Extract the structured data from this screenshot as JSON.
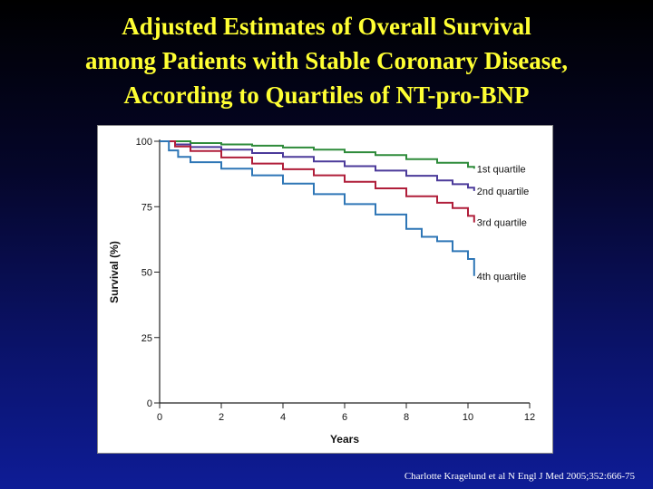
{
  "slide": {
    "title_lines": [
      "Adjusted Estimates of Overall Survival",
      "among Patients with Stable Coronary Disease,",
      "According to Quartiles of NT-pro-BNP"
    ],
    "citation": "Charlotte Kragelund et al N Engl J Med 2005;352:666-75"
  },
  "colors": {
    "title": "#ffff33",
    "q1": "#2e8b3a",
    "q2": "#4b3a9a",
    "q3": "#b01e3a",
    "q4": "#2e76b6"
  },
  "chart_data": {
    "type": "line",
    "xlabel": "Years",
    "ylabel": "Survival (%)",
    "xlim": [
      0,
      12
    ],
    "ylim": [
      0,
      100
    ],
    "xticks": [
      0,
      2,
      4,
      6,
      8,
      10,
      12
    ],
    "yticks": [
      0,
      25,
      50,
      75,
      100
    ],
    "grid": false,
    "legend": "labels at line ends",
    "series": [
      {
        "name": "1st quartile",
        "color": "#2e8b3a",
        "x": [
          0,
          1,
          2,
          3,
          4,
          5,
          6,
          7,
          8,
          9,
          10,
          10.2
        ],
        "y": [
          100,
          99.3,
          98.8,
          98.3,
          97.6,
          96.8,
          95.8,
          94.7,
          93.2,
          91.8,
          90.2,
          89.5
        ]
      },
      {
        "name": "2nd quartile",
        "color": "#4b3a9a",
        "x": [
          0,
          0.5,
          1,
          2,
          3,
          4,
          5,
          6,
          7,
          8,
          9,
          9.5,
          10,
          10.2
        ],
        "y": [
          100,
          98.8,
          97.8,
          96.8,
          95.5,
          94,
          92.3,
          90.5,
          88.8,
          86.8,
          85,
          83.6,
          82.3,
          81
        ]
      },
      {
        "name": "3rd quartile",
        "color": "#b01e3a",
        "x": [
          0,
          0.5,
          1,
          2,
          3,
          4,
          5,
          6,
          7,
          8,
          9,
          9.5,
          10,
          10.2
        ],
        "y": [
          100,
          98,
          96.3,
          93.8,
          91.5,
          89.3,
          87,
          84.5,
          82,
          79,
          76.5,
          74.5,
          71.5,
          69
        ]
      },
      {
        "name": "4th quartile",
        "color": "#2e76b6",
        "x": [
          0,
          0.3,
          0.6,
          1,
          2,
          3,
          4,
          5,
          6,
          7,
          8,
          8.5,
          9,
          9.5,
          10,
          10.2
        ],
        "y": [
          100,
          96.5,
          94,
          92,
          89.5,
          87,
          83.8,
          79.8,
          76,
          72,
          66.5,
          63.5,
          61.8,
          58,
          55,
          48.5
        ]
      }
    ]
  }
}
